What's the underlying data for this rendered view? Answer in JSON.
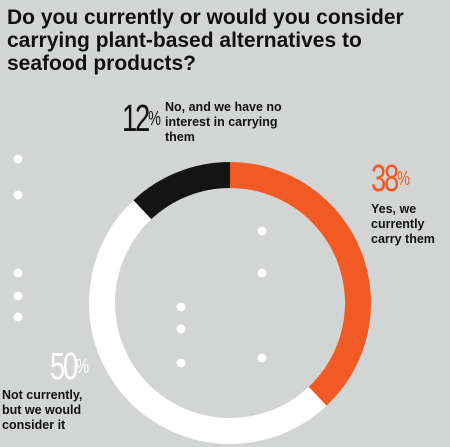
{
  "chart_data": {
    "type": "pie",
    "title": "Do you currently or would you consider carrying plant-based alternatives to seafood products?",
    "slices": [
      {
        "label": "Yes, we currently carry them",
        "value": 38,
        "value_label": "38",
        "color": "#f15a24"
      },
      {
        "label": "Not currently, but we would consider it",
        "value": 50,
        "value_label": "50",
        "color": "#ffffff"
      },
      {
        "label": "No, and we have no interest in carrying them",
        "value": 12,
        "value_label": "12",
        "color": "#141414"
      }
    ],
    "percent_symbol": "%",
    "donut": true
  }
}
